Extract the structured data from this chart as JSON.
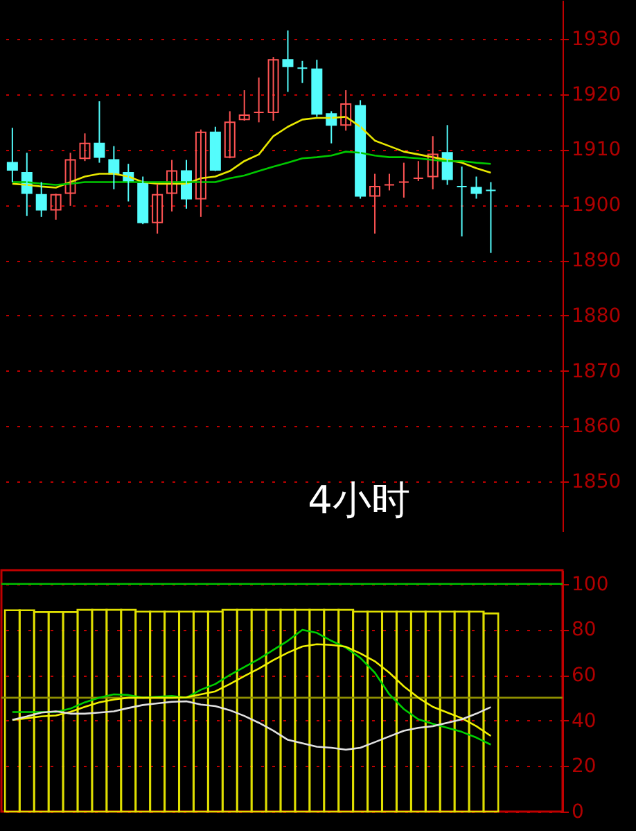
{
  "chart_data": [
    {
      "type": "candlestick",
      "categories": [
        null,
        null,
        null,
        null,
        null,
        null,
        null,
        null,
        null,
        null,
        null,
        null,
        null,
        null,
        null,
        null,
        null,
        null,
        null,
        null,
        null,
        null,
        null,
        null,
        null,
        null,
        null,
        null,
        null,
        null,
        null,
        null,
        null,
        null
      ],
      "ohlc": [
        [
          1907.6,
          1913.9,
          1904.1,
          1906.3
        ],
        [
          1905.8,
          1909.4,
          1898.0,
          1902.1
        ],
        [
          1901.8,
          1904.1,
          1897.8,
          1899.1
        ],
        [
          1899.1,
          1902.0,
          1897.3,
          1901.8
        ],
        [
          1902.1,
          1909.4,
          1899.8,
          1908.1
        ],
        [
          1908.4,
          1912.9,
          1907.9,
          1911.1
        ],
        [
          1911.1,
          1918.7,
          1907.6,
          1908.6
        ],
        [
          1908.1,
          1910.6,
          1902.8,
          1905.6
        ],
        [
          1905.8,
          1907.4,
          1900.6,
          1904.3
        ],
        [
          1903.8,
          1905.1,
          1896.5,
          1896.8
        ],
        [
          1896.8,
          1903.8,
          1894.8,
          1901.8
        ],
        [
          1902.1,
          1908.1,
          1898.8,
          1906.1
        ],
        [
          1906.1,
          1908.1,
          1899.3,
          1901.1
        ],
        [
          1901.1,
          1913.6,
          1897.8,
          1913.1
        ],
        [
          1913.1,
          1914.1,
          1906.1,
          1906.3
        ],
        [
          1908.6,
          1916.9,
          1908.4,
          1914.9
        ],
        [
          1915.4,
          1920.7,
          1915.2,
          1916.2
        ],
        [
          1916.7,
          1923.0,
          1914.9,
          1916.7
        ],
        [
          1916.7,
          1926.7,
          1915.2,
          1926.2
        ],
        [
          1926.2,
          1931.5,
          1920.4,
          1925.0
        ],
        [
          1924.7,
          1926.0,
          1922.0,
          1924.7
        ],
        [
          1924.5,
          1926.2,
          1915.9,
          1916.4
        ],
        [
          1916.4,
          1916.9,
          1911.1,
          1914.4
        ],
        [
          1914.4,
          1920.7,
          1913.4,
          1918.2
        ],
        [
          1917.9,
          1918.9,
          1901.1,
          1901.6
        ],
        [
          1901.6,
          1905.6,
          1894.8,
          1903.3
        ],
        [
          1903.6,
          1905.6,
          1902.6,
          1903.6
        ],
        [
          1904.1,
          1907.6,
          1901.3,
          1904.1
        ],
        [
          1904.8,
          1907.9,
          1904.3,
          1904.8
        ],
        [
          1905.1,
          1912.4,
          1902.8,
          1909.1
        ],
        [
          1909.4,
          1914.4,
          1903.6,
          1904.6
        ],
        [
          1903.3,
          1906.9,
          1894.3,
          1903.3
        ],
        [
          1903.1,
          1905.1,
          1901.1,
          1902.1
        ],
        [
          1902.6,
          1904.1,
          1891.3,
          1902.6
        ]
      ],
      "colors": [
        "#54fcfc",
        "#54fcfc",
        "#54fcfc",
        "#ff5454",
        "#ff5454",
        "#ff5454",
        "#54fcfc",
        "#54fcfc",
        "#54fcfc",
        "#54fcfc",
        "#ff5454",
        "#ff5454",
        "#54fcfc",
        "#ff5454",
        "#54fcfc",
        "#ff5454",
        "#ff5454",
        "#ff5454",
        "#ff5454",
        "#54fcfc",
        "#54fcfc",
        "#54fcfc",
        "#54fcfc",
        "#ff5454",
        "#54fcfc",
        "#ff5454",
        "#ff5454",
        "#ff5454",
        "#ff5454",
        "#ff5454",
        "#54fcfc",
        "#54fcfc",
        "#54fcfc",
        "#54fcfc"
      ],
      "series": [
        {
          "type": "line",
          "color": "#e8e800",
          "values": [
            1903.8,
            1903.6,
            1903.3,
            1903.1,
            1904.1,
            1905.1,
            1905.6,
            1905.6,
            1905.1,
            1904.1,
            1903.8,
            1903.8,
            1903.8,
            1904.8,
            1905.1,
            1906.1,
            1907.9,
            1909.1,
            1912.4,
            1914.1,
            1915.4,
            1915.7,
            1915.7,
            1915.9,
            1914.1,
            1911.6,
            1910.6,
            1909.6,
            1909.1,
            1908.6,
            1908.1,
            1907.6,
            1906.6,
            1905.8
          ]
        },
        {
          "type": "line",
          "color": "#00c800",
          "values": [
            1904.1,
            1904.1,
            1903.8,
            1903.6,
            1903.8,
            1904.1,
            1904.1,
            1904.1,
            1904.1,
            1904.1,
            1904.1,
            1904.1,
            1904.1,
            1904.1,
            1904.1,
            1904.8,
            1905.3,
            1906.1,
            1906.9,
            1907.6,
            1908.4,
            1908.6,
            1908.9,
            1909.6,
            1909.4,
            1908.9,
            1908.6,
            1908.6,
            1908.4,
            1908.1,
            1907.9,
            1907.9,
            1907.6,
            1907.4
          ]
        }
      ],
      "ylim": [
        1841,
        1937
      ],
      "yticks": [
        1850,
        1860,
        1870,
        1880,
        1890,
        1900,
        1910,
        1920,
        1930
      ],
      "grid": "y",
      "tick_labels": "y",
      "annotations": [
        "4小时"
      ]
    },
    {
      "type": "line",
      "categories": [
        null,
        null,
        null,
        null,
        null,
        null,
        null,
        null,
        null,
        null,
        null,
        null,
        null,
        null,
        null,
        null,
        null,
        null,
        null,
        null,
        null,
        null,
        null,
        null,
        null,
        null,
        null,
        null,
        null,
        null,
        null,
        null,
        null,
        null
      ],
      "series": [
        {
          "type": "bar",
          "color": "#e0e000",
          "values": [
            88.4,
            88.4,
            87.6,
            87.6,
            87.6,
            88.6,
            88.6,
            88.6,
            88.6,
            87.8,
            87.8,
            87.8,
            87.8,
            87.8,
            87.8,
            88.6,
            88.6,
            88.6,
            88.6,
            88.6,
            88.6,
            88.6,
            88.6,
            88.6,
            87.8,
            87.8,
            87.8,
            87.8,
            87.8,
            87.8,
            87.8,
            87.8,
            87.8,
            87
          ]
        },
        {
          "type": "line",
          "color": "#00d000",
          "values": [
            43.7,
            43.7,
            43.7,
            43.7,
            45.2,
            48.0,
            50.0,
            51.5,
            51.2,
            50.0,
            50.4,
            50.8,
            50.0,
            53.5,
            56.0,
            60.0,
            63.5,
            67.0,
            71.0,
            75.0,
            79.8,
            78.5,
            75.0,
            72.0,
            67.5,
            61.0,
            51.5,
            45.0,
            40.5,
            38.5,
            36.8,
            35.0,
            32.5,
            29.4
          ]
        },
        {
          "type": "line",
          "color": "#f0f000",
          "values": [
            40.2,
            41.0,
            41.8,
            42.2,
            43.8,
            46.0,
            48.0,
            49.2,
            50.0,
            50.0,
            50.0,
            50.0,
            50.2,
            51.5,
            52.8,
            56.0,
            59.5,
            62.8,
            66.5,
            69.8,
            72.5,
            73.5,
            73.2,
            72.4,
            69.5,
            66.0,
            61.0,
            55.0,
            50.0,
            46.0,
            43.5,
            41.0,
            37.5,
            33.2
          ]
        },
        {
          "type": "line",
          "color": "#e0e0e0",
          "values": [
            40.3,
            41.8,
            43.5,
            44.0,
            43.0,
            43.0,
            43.5,
            44.0,
            45.5,
            46.8,
            47.5,
            48.2,
            48.4,
            47.0,
            46.3,
            44.5,
            42.0,
            39.0,
            35.5,
            31.5,
            30.0,
            28.5,
            28.0,
            27.2,
            28.0,
            30.5,
            33.0,
            35.5,
            36.8,
            37.5,
            39.0,
            40.5,
            43.0,
            45.9
          ]
        }
      ],
      "ref_lines": [
        {
          "axis": "y",
          "value": 100,
          "color": "#00c000"
        },
        {
          "axis": "y",
          "value": 50,
          "color": "#909000"
        }
      ],
      "ylim": [
        0,
        106
      ],
      "yticks": [
        0,
        20,
        40,
        60,
        80,
        100
      ],
      "grid": "y",
      "tick_labels": "y"
    }
  ]
}
